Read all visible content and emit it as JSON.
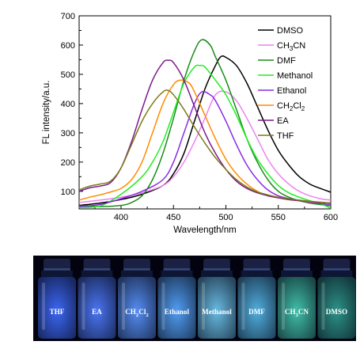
{
  "chart_data": {
    "type": "line",
    "xlabel": "Wavelength/nm",
    "ylabel": "FL intensity/a.u.",
    "xlim": [
      360,
      600
    ],
    "ylim": [
      40,
      700
    ],
    "xticks": [
      400,
      450,
      500,
      550,
      600
    ],
    "yticks": [
      100,
      200,
      300,
      400,
      500,
      600,
      700
    ],
    "grid": false,
    "legend_position": "top-right",
    "series": [
      {
        "name": "DMSO",
        "color": "#000000",
        "x": [
          360,
          380,
          400,
          420,
          440,
          450,
          460,
          470,
          480,
          490,
          495,
          500,
          510,
          520,
          530,
          540,
          550,
          560,
          570,
          580,
          590,
          600
        ],
        "y": [
          52,
          60,
          72,
          90,
          120,
          160,
          230,
          340,
          450,
          530,
          560,
          558,
          530,
          470,
          390,
          310,
          240,
          190,
          150,
          125,
          110,
          97
        ]
      },
      {
        "name": "CH3CN",
        "label_main": "CH",
        "label_sub": "3",
        "label_tail": "CN",
        "color": "#ee82ee",
        "x": [
          360,
          380,
          400,
          420,
          440,
          450,
          460,
          470,
          480,
          490,
          500,
          510,
          520,
          530,
          540,
          550,
          560,
          570,
          580,
          590,
          600
        ],
        "y": [
          62,
          70,
          80,
          95,
          120,
          150,
          200,
          270,
          350,
          430,
          440,
          410,
          350,
          280,
          210,
          160,
          125,
          100,
          85,
          75,
          70
        ]
      },
      {
        "name": "DMF",
        "color": "#1a8c1a",
        "x": [
          360,
          380,
          400,
          410,
          420,
          430,
          440,
          450,
          460,
          470,
          477,
          485,
          490,
          500,
          510,
          520,
          530,
          540,
          550,
          560,
          570,
          580,
          590,
          600
        ],
        "y": [
          50,
          48,
          52,
          62,
          85,
          140,
          230,
          350,
          480,
          580,
          618,
          600,
          560,
          480,
          380,
          280,
          200,
          140,
          100,
          80,
          68,
          60,
          55,
          50
        ]
      },
      {
        "name": "Methanol",
        "color": "#22ee22",
        "x": [
          360,
          380,
          400,
          420,
          430,
          440,
          450,
          460,
          470,
          475,
          480,
          490,
          500,
          510,
          520,
          530,
          540,
          550,
          560,
          570,
          580,
          590,
          600
        ],
        "y": [
          45,
          50,
          90,
          150,
          200,
          270,
          370,
          470,
          525,
          530,
          525,
          480,
          430,
          360,
          280,
          210,
          160,
          120,
          95,
          80,
          68,
          58,
          42
        ]
      },
      {
        "name": "Ethanol",
        "color": "#8a2be2",
        "x": [
          360,
          380,
          400,
          420,
          440,
          450,
          460,
          470,
          477,
          485,
          490,
          500,
          510,
          520,
          530,
          540,
          550,
          560,
          570,
          580,
          590,
          600
        ],
        "y": [
          48,
          55,
          75,
          100,
          140,
          200,
          300,
          400,
          440,
          430,
          410,
          340,
          260,
          190,
          140,
          105,
          85,
          75,
          68,
          62,
          58,
          55
        ]
      },
      {
        "name": "CH2Cl2",
        "label_main": "CH",
        "label_sub": "2",
        "label_tail": "Cl",
        "label_sub2": "2",
        "color": "#ff8c00",
        "x": [
          360,
          370,
          380,
          390,
          400,
          410,
          420,
          430,
          440,
          450,
          457,
          465,
          470,
          480,
          490,
          500,
          510,
          520,
          530,
          540,
          550,
          560,
          570,
          580,
          590,
          600
        ],
        "y": [
          70,
          80,
          88,
          98,
          110,
          140,
          200,
          300,
          400,
          465,
          480,
          470,
          440,
          360,
          280,
          210,
          160,
          125,
          100,
          85,
          78,
          72,
          68,
          64,
          62,
          60
        ]
      },
      {
        "name": "EA",
        "color": "#7a1a8a",
        "x": [
          360,
          370,
          380,
          390,
          400,
          410,
          420,
          430,
          440,
          445,
          450,
          460,
          470,
          480,
          490,
          500,
          510,
          520,
          530,
          540,
          550,
          560,
          570,
          580,
          590,
          600
        ],
        "y": [
          100,
          112,
          118,
          130,
          180,
          270,
          380,
          480,
          540,
          548,
          540,
          480,
          390,
          300,
          230,
          175,
          135,
          110,
          95,
          85,
          78,
          72,
          68,
          65,
          62,
          60
        ]
      },
      {
        "name": "THF",
        "color": "#7b7b1a",
        "x": [
          360,
          370,
          380,
          390,
          400,
          410,
          420,
          430,
          440,
          445,
          450,
          460,
          470,
          480,
          490,
          500,
          510,
          520,
          530,
          540,
          550,
          560,
          570,
          580,
          590,
          600
        ],
        "y": [
          105,
          118,
          125,
          135,
          180,
          260,
          340,
          400,
          440,
          445,
          430,
          380,
          320,
          265,
          215,
          175,
          140,
          115,
          98,
          88,
          80,
          74,
          70,
          66,
          63,
          60
        ]
      }
    ]
  },
  "photo": {
    "vials": [
      {
        "label": "THF",
        "color": "#3f6cff"
      },
      {
        "label": "EA",
        "color": "#4f7cff"
      },
      {
        "label": "CH2Cl2",
        "label_main": "CH",
        "label_sub": "2",
        "label_tail": "Cl",
        "label_sub2": "2",
        "color": "#5a95ff"
      },
      {
        "label": "Ethanol",
        "color": "#56a6ff"
      },
      {
        "label": "Methanol",
        "color": "#6ec4ee"
      },
      {
        "label": "DMF",
        "color": "#55b8ea"
      },
      {
        "label": "CH3CN",
        "label_main": "CH",
        "label_sub": "3",
        "label_tail": "CN",
        "color": "#44c9b2"
      },
      {
        "label": "DMSO",
        "color": "#2f9a8f"
      }
    ]
  }
}
